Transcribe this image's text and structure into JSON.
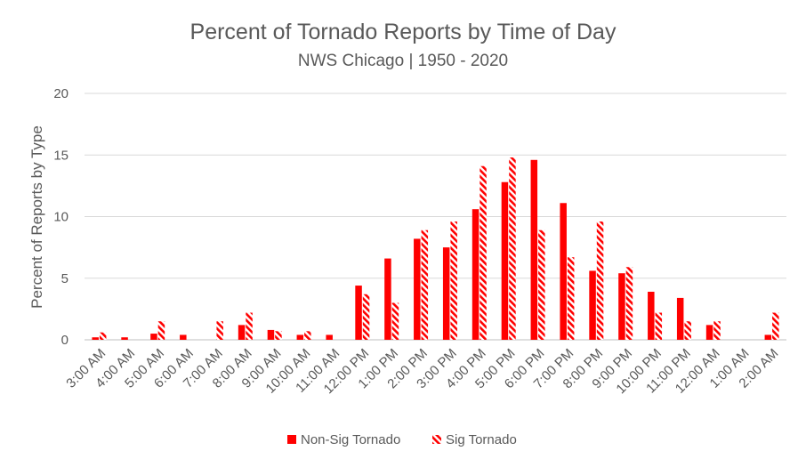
{
  "chart_data": {
    "type": "bar",
    "title": "Percent of Tornado Reports by Time of Day",
    "subtitle": "NWS Chicago | 1950 - 2020",
    "xlabel": "",
    "ylabel": "Percent of Reports by Type",
    "ylim": [
      0,
      20
    ],
    "yticks": [
      0,
      5,
      10,
      15,
      20
    ],
    "grid": true,
    "legend_position": "bottom",
    "categories": [
      "3:00 AM",
      "4:00 AM",
      "5:00 AM",
      "6:00 AM",
      "7:00 AM",
      "8:00 AM",
      "9:00 AM",
      "10:00 AM",
      "11:00 AM",
      "12:00 PM",
      "1:00 PM",
      "2:00 PM",
      "3:00 PM",
      "4:00 PM",
      "5:00 PM",
      "6:00 PM",
      "7:00 PM",
      "8:00 PM",
      "9:00 PM",
      "10:00 PM",
      "11:00 PM",
      "12:00 AM",
      "1:00 AM",
      "2:00 AM"
    ],
    "series": [
      {
        "name": "Non-Sig Tornado",
        "style": "solid",
        "color": "#ff0000",
        "values": [
          0.2,
          0.2,
          0.5,
          0.4,
          0,
          1.2,
          0.8,
          0.4,
          0.4,
          4.4,
          6.6,
          8.2,
          7.5,
          10.6,
          12.8,
          14.6,
          11.1,
          5.6,
          5.4,
          3.9,
          3.4,
          1.2,
          0,
          0.4
        ]
      },
      {
        "name": "Sig Tornado",
        "style": "hatched",
        "color": "#ff0000",
        "values": [
          0.6,
          0,
          1.5,
          0,
          1.5,
          2.2,
          0.7,
          0.7,
          0,
          3.7,
          3.0,
          8.9,
          9.6,
          14.1,
          14.8,
          8.9,
          6.7,
          9.6,
          5.9,
          2.2,
          1.5,
          1.5,
          0,
          2.2
        ]
      }
    ]
  }
}
